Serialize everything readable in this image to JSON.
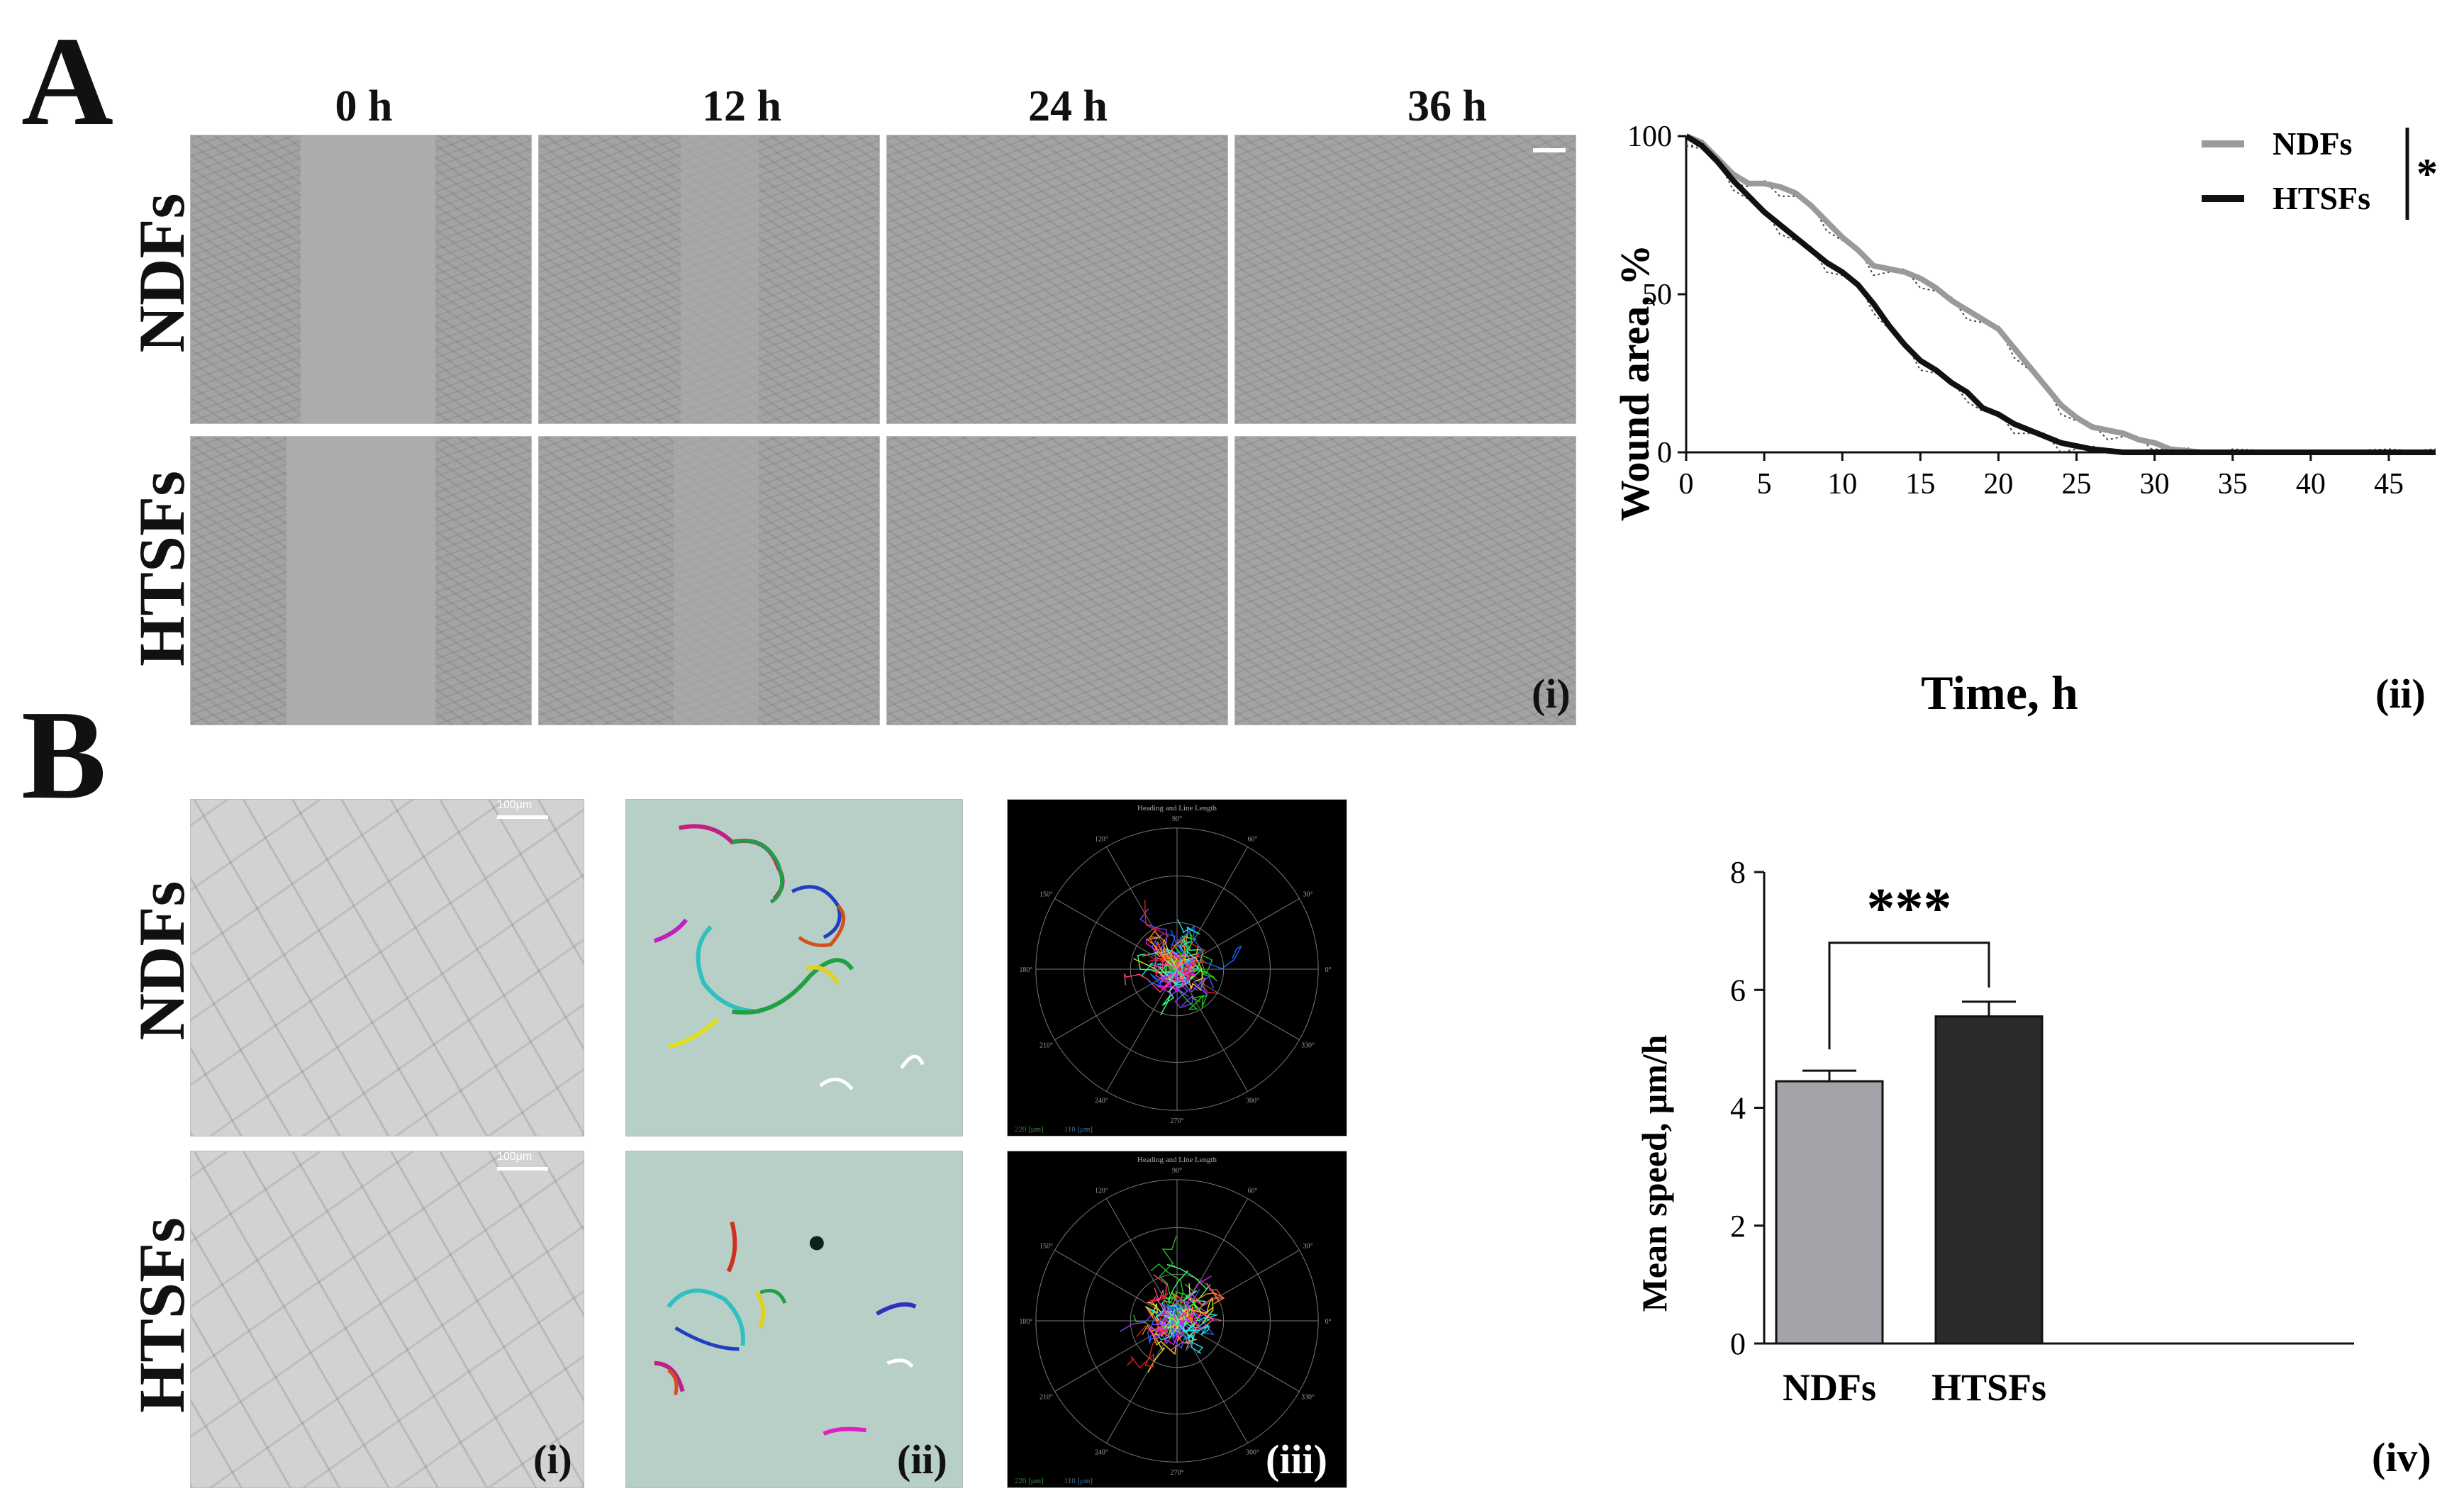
{
  "panels": {
    "A": {
      "letter": "A",
      "time_labels": [
        "0 h",
        "12 h",
        "24 h",
        "36 h"
      ],
      "rows": [
        "NDFs",
        "HTSFs"
      ],
      "sub_i": "(i)",
      "sub_ii": "(ii)"
    },
    "B": {
      "letter": "B",
      "rows": [
        "NDFs",
        "HTSFs"
      ],
      "sub_i": "(i)",
      "sub_ii": "(ii)",
      "sub_iii": "(iii)",
      "sub_iv": "(iv)",
      "scale_text": "100μm",
      "rose_title": "Heading and Line Length",
      "rose_angles": [
        "90°",
        "60°",
        "30°",
        "0°",
        "330°",
        "300°",
        "270°",
        "240°",
        "210°",
        "180°",
        "150°",
        "120°"
      ],
      "rose_footer": [
        "220 [μm]",
        "110 [μm]"
      ]
    }
  },
  "chart_data": [
    {
      "type": "line",
      "title": "",
      "xlabel": "Time, h",
      "ylabel": "Wound area, %",
      "xlim": [
        0,
        48
      ],
      "ylim": [
        0,
        100
      ],
      "xticks": [
        0,
        5,
        10,
        15,
        20,
        25,
        30,
        35,
        40,
        45
      ],
      "yticks": [
        0,
        50,
        100
      ],
      "significance": "*",
      "series": [
        {
          "name": "NDFs",
          "color": "#9a9a9a",
          "x": [
            0,
            1,
            2,
            3,
            4,
            5,
            6,
            7,
            8,
            9,
            10,
            11,
            12,
            13,
            14,
            15,
            16,
            17,
            18,
            19,
            20,
            21,
            22,
            23,
            24,
            25,
            26,
            27,
            28,
            29,
            30,
            31,
            32,
            33,
            34,
            35,
            40,
            45,
            48
          ],
          "y": [
            100,
            98,
            93,
            88,
            85,
            85,
            84,
            82,
            78,
            73,
            68,
            64,
            59,
            58,
            57,
            55,
            52,
            48,
            45,
            42,
            39,
            33,
            27,
            21,
            15,
            11,
            8,
            7,
            6,
            4,
            3,
            1,
            0.5,
            0,
            0,
            0,
            0,
            0,
            0
          ]
        },
        {
          "name": "HTSFs",
          "color": "#111111",
          "x": [
            0,
            1,
            2,
            3,
            4,
            5,
            6,
            7,
            8,
            9,
            10,
            11,
            12,
            13,
            14,
            15,
            16,
            17,
            18,
            19,
            20,
            21,
            22,
            23,
            24,
            25,
            26,
            27,
            28,
            30,
            35,
            40,
            45,
            48
          ],
          "y": [
            100,
            97,
            92,
            86,
            81,
            76,
            72,
            68,
            64,
            60,
            57,
            53,
            47,
            40,
            34,
            29,
            26,
            22,
            19,
            14,
            12,
            9,
            7,
            5,
            3,
            2,
            1,
            0.5,
            0,
            0,
            0,
            0,
            0,
            0
          ]
        }
      ]
    },
    {
      "type": "bar",
      "title": "",
      "xlabel": "",
      "ylabel": "Mean speed, μm/h",
      "ylim": [
        0,
        8
      ],
      "yticks": [
        0,
        2,
        4,
        6,
        8
      ],
      "categories": [
        "NDFs",
        "HTSFs"
      ],
      "values": [
        4.45,
        5.55
      ],
      "errors": [
        0.18,
        0.25
      ],
      "colors": [
        "#a3a3a9",
        "#2b2b2b"
      ],
      "significance": "***"
    }
  ]
}
